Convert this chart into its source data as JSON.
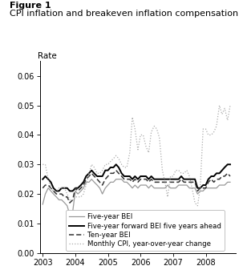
{
  "title_line1": "Figure 1",
  "title_line2": "CPI inflation and breakeven inflation compensation",
  "rate_label": "Rate",
  "ylim": [
    0.0,
    0.065
  ],
  "yticks": [
    0.0,
    0.01,
    0.02,
    0.03,
    0.04,
    0.05,
    0.06
  ],
  "xlim_start": 2002.92,
  "xlim_end": 2008.92,
  "xtick_labels": [
    "2003",
    "2004",
    "2005",
    "2006",
    "2007",
    "2008"
  ],
  "xtick_positions": [
    2003,
    2004,
    2005,
    2006,
    2007,
    2008
  ],
  "legend_entries": [
    "Five-year BEI",
    "Five-year forward BEI five years ahead",
    "Ten-year BEI",
    "Monthly CPI, year-over-year change"
  ],
  "five_year_bei": {
    "x": [
      2003.0,
      2003.08,
      2003.17,
      2003.25,
      2003.33,
      2003.42,
      2003.5,
      2003.58,
      2003.67,
      2003.75,
      2003.83,
      2003.92,
      2004.0,
      2004.08,
      2004.17,
      2004.25,
      2004.33,
      2004.42,
      2004.5,
      2004.58,
      2004.67,
      2004.75,
      2004.83,
      2004.92,
      2005.0,
      2005.08,
      2005.17,
      2005.25,
      2005.33,
      2005.42,
      2005.5,
      2005.58,
      2005.67,
      2005.75,
      2005.83,
      2005.92,
      2006.0,
      2006.08,
      2006.17,
      2006.25,
      2006.33,
      2006.42,
      2006.5,
      2006.58,
      2006.67,
      2006.75,
      2006.83,
      2006.92,
      2007.0,
      2007.08,
      2007.17,
      2007.25,
      2007.33,
      2007.42,
      2007.5,
      2007.58,
      2007.67,
      2007.75,
      2007.83,
      2007.92,
      2008.0,
      2008.08,
      2008.17,
      2008.25,
      2008.33,
      2008.42,
      2008.5,
      2008.58,
      2008.67,
      2008.75
    ],
    "y": [
      0.0165,
      0.02,
      0.022,
      0.021,
      0.02,
      0.019,
      0.018,
      0.018,
      0.017,
      0.016,
      0.013,
      0.014,
      0.021,
      0.02,
      0.021,
      0.022,
      0.024,
      0.024,
      0.025,
      0.024,
      0.023,
      0.022,
      0.02,
      0.022,
      0.023,
      0.024,
      0.024,
      0.025,
      0.025,
      0.025,
      0.024,
      0.024,
      0.023,
      0.022,
      0.023,
      0.022,
      0.023,
      0.023,
      0.023,
      0.022,
      0.023,
      0.022,
      0.022,
      0.022,
      0.022,
      0.022,
      0.023,
      0.022,
      0.022,
      0.022,
      0.023,
      0.023,
      0.023,
      0.023,
      0.022,
      0.022,
      0.022,
      0.02,
      0.021,
      0.021,
      0.022,
      0.022,
      0.022,
      0.022,
      0.022,
      0.023,
      0.023,
      0.023,
      0.024,
      0.024
    ],
    "color": "#999999",
    "linewidth": 0.9,
    "linestyle": "-"
  },
  "five_year_fwd_bei": {
    "x": [
      2003.0,
      2003.08,
      2003.17,
      2003.25,
      2003.33,
      2003.42,
      2003.5,
      2003.58,
      2003.67,
      2003.75,
      2003.83,
      2003.92,
      2004.0,
      2004.08,
      2004.17,
      2004.25,
      2004.33,
      2004.42,
      2004.5,
      2004.58,
      2004.67,
      2004.75,
      2004.83,
      2004.92,
      2005.0,
      2005.08,
      2005.17,
      2005.25,
      2005.33,
      2005.42,
      2005.5,
      2005.58,
      2005.67,
      2005.75,
      2005.83,
      2005.92,
      2006.0,
      2006.08,
      2006.17,
      2006.25,
      2006.33,
      2006.42,
      2006.5,
      2006.58,
      2006.67,
      2006.75,
      2006.83,
      2006.92,
      2007.0,
      2007.08,
      2007.17,
      2007.25,
      2007.33,
      2007.42,
      2007.5,
      2007.58,
      2007.67,
      2007.75,
      2007.83,
      2007.92,
      2008.0,
      2008.08,
      2008.17,
      2008.25,
      2008.33,
      2008.42,
      2008.5,
      2008.58,
      2008.67,
      2008.75
    ],
    "y": [
      0.025,
      0.026,
      0.025,
      0.024,
      0.022,
      0.021,
      0.021,
      0.022,
      0.022,
      0.022,
      0.021,
      0.021,
      0.022,
      0.022,
      0.023,
      0.024,
      0.026,
      0.027,
      0.028,
      0.027,
      0.026,
      0.026,
      0.026,
      0.028,
      0.028,
      0.029,
      0.029,
      0.03,
      0.029,
      0.027,
      0.026,
      0.026,
      0.026,
      0.025,
      0.026,
      0.025,
      0.026,
      0.026,
      0.026,
      0.025,
      0.026,
      0.025,
      0.025,
      0.025,
      0.025,
      0.025,
      0.025,
      0.025,
      0.025,
      0.025,
      0.025,
      0.026,
      0.025,
      0.025,
      0.025,
      0.025,
      0.025,
      0.022,
      0.022,
      0.023,
      0.023,
      0.025,
      0.026,
      0.026,
      0.027,
      0.027,
      0.028,
      0.029,
      0.03,
      0.03
    ],
    "color": "#000000",
    "linewidth": 1.4,
    "linestyle": "-"
  },
  "ten_year_bei": {
    "x": [
      2003.0,
      2003.08,
      2003.17,
      2003.25,
      2003.33,
      2003.42,
      2003.5,
      2003.58,
      2003.67,
      2003.75,
      2003.83,
      2003.92,
      2004.0,
      2004.08,
      2004.17,
      2004.25,
      2004.33,
      2004.42,
      2004.5,
      2004.58,
      2004.67,
      2004.75,
      2004.83,
      2004.92,
      2005.0,
      2005.08,
      2005.17,
      2005.25,
      2005.33,
      2005.42,
      2005.5,
      2005.58,
      2005.67,
      2005.75,
      2005.83,
      2005.92,
      2006.0,
      2006.08,
      2006.17,
      2006.25,
      2006.33,
      2006.42,
      2006.5,
      2006.58,
      2006.67,
      2006.75,
      2006.83,
      2006.92,
      2007.0,
      2007.08,
      2007.17,
      2007.25,
      2007.33,
      2007.42,
      2007.5,
      2007.58,
      2007.67,
      2007.75,
      2007.83,
      2007.92,
      2008.0,
      2008.08,
      2008.17,
      2008.25,
      2008.33,
      2008.42,
      2008.5,
      2008.58,
      2008.67,
      2008.75
    ],
    "y": [
      0.022,
      0.023,
      0.023,
      0.022,
      0.021,
      0.02,
      0.02,
      0.02,
      0.019,
      0.019,
      0.017,
      0.018,
      0.022,
      0.021,
      0.022,
      0.023,
      0.025,
      0.026,
      0.027,
      0.026,
      0.025,
      0.024,
      0.023,
      0.025,
      0.026,
      0.027,
      0.027,
      0.028,
      0.027,
      0.026,
      0.025,
      0.025,
      0.025,
      0.024,
      0.025,
      0.024,
      0.025,
      0.025,
      0.025,
      0.024,
      0.025,
      0.024,
      0.024,
      0.024,
      0.024,
      0.024,
      0.024,
      0.024,
      0.024,
      0.024,
      0.024,
      0.025,
      0.024,
      0.024,
      0.024,
      0.024,
      0.024,
      0.021,
      0.022,
      0.022,
      0.022,
      0.024,
      0.025,
      0.024,
      0.025,
      0.025,
      0.026,
      0.026,
      0.027,
      0.026
    ],
    "color": "#333333",
    "linewidth": 1.1,
    "linestyle": "--",
    "dashes": [
      4,
      2
    ]
  },
  "monthly_cpi": {
    "x": [
      2003.0,
      2003.08,
      2003.17,
      2003.25,
      2003.33,
      2003.42,
      2003.5,
      2003.58,
      2003.67,
      2003.75,
      2003.83,
      2003.92,
      2004.0,
      2004.08,
      2004.17,
      2004.25,
      2004.33,
      2004.42,
      2004.5,
      2004.58,
      2004.67,
      2004.75,
      2004.83,
      2004.92,
      2005.0,
      2005.08,
      2005.17,
      2005.25,
      2005.33,
      2005.42,
      2005.5,
      2005.58,
      2005.67,
      2005.75,
      2005.83,
      2005.92,
      2006.0,
      2006.08,
      2006.17,
      2006.25,
      2006.33,
      2006.42,
      2006.5,
      2006.58,
      2006.67,
      2006.75,
      2006.83,
      2006.92,
      2007.0,
      2007.08,
      2007.17,
      2007.25,
      2007.33,
      2007.42,
      2007.5,
      2007.58,
      2007.67,
      2007.75,
      2007.83,
      2007.92,
      2008.0,
      2008.08,
      2008.17,
      2008.25,
      2008.33,
      2008.42,
      2008.5,
      2008.58,
      2008.67,
      2008.75
    ],
    "y": [
      0.03,
      0.03,
      0.025,
      0.022,
      0.021,
      0.021,
      0.022,
      0.022,
      0.022,
      0.02,
      0.018,
      0.018,
      0.019,
      0.019,
      0.019,
      0.02,
      0.023,
      0.027,
      0.03,
      0.029,
      0.027,
      0.027,
      0.028,
      0.03,
      0.03,
      0.031,
      0.032,
      0.033,
      0.032,
      0.03,
      0.029,
      0.029,
      0.034,
      0.046,
      0.042,
      0.035,
      0.04,
      0.04,
      0.036,
      0.034,
      0.041,
      0.043,
      0.042,
      0.039,
      0.028,
      0.024,
      0.019,
      0.026,
      0.026,
      0.028,
      0.028,
      0.027,
      0.027,
      0.028,
      0.026,
      0.022,
      0.017,
      0.016,
      0.022,
      0.042,
      0.042,
      0.04,
      0.04,
      0.041,
      0.043,
      0.05,
      0.047,
      0.049,
      0.045,
      0.05
    ],
    "color": "#aaaaaa",
    "linewidth": 0.9,
    "linestyle": ":"
  },
  "background_color": "#ffffff",
  "title1_fontsize": 8.0,
  "title2_fontsize": 8.0,
  "rate_fontsize": 7.5,
  "tick_fontsize": 7.0,
  "legend_fontsize": 6.2
}
